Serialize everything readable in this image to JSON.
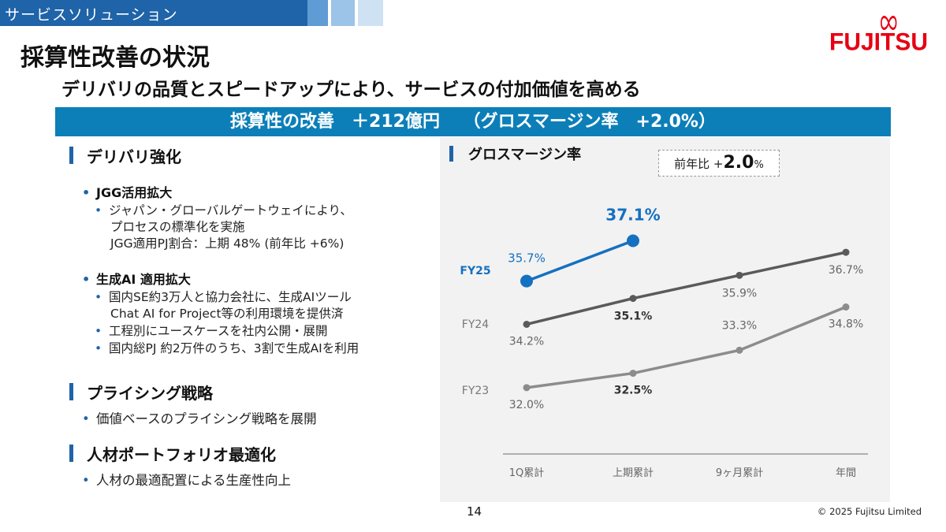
{
  "header": {
    "section_label": "サービスソリューション",
    "logo_text": "FUJITSU",
    "title": "採算性改善の状況",
    "subtitle": "デリバリの品質とスピードアップにより、サービスの付加価値を高める",
    "banner": "採算性の改善　＋212億円　 （グロスマージン率　+2.0%）"
  },
  "left": {
    "delivery": {
      "heading": "デリバリ強化",
      "items": [
        {
          "label": "JGG活用拡大",
          "sub": [
            {
              "lines": [
                "ジャパン・グローバルゲートウェイにより、",
                "プロセスの標準化を実施",
                "JGG適用PJ割合：上期 48% (前年比 +6%)"
              ]
            }
          ]
        },
        {
          "label": "生成AI 適用拡大",
          "sub": [
            {
              "lines": [
                "国内SE約3万人と協力会社に、生成AIツール",
                "Chat AI for Project等の利用環境を提供済"
              ]
            },
            {
              "lines": [
                "工程別にユースケースを社内公開・展開"
              ]
            },
            {
              "lines": [
                "国内総PJ 約2万件のうち、3割で生成AIを利用"
              ]
            }
          ]
        }
      ]
    },
    "pricing": {
      "heading": "プライシング戦略",
      "item": "価値ベースのプライシング戦略を展開"
    },
    "talent": {
      "heading": "人材ポートフォリオ最適化",
      "item": "人材の最適配置による生産性向上"
    }
  },
  "chart_box": {
    "title": "グロスマージン率",
    "yoy_prefix": "前年比 +",
    "yoy_value": "2.0",
    "yoy_unit": "%"
  },
  "chart_data": {
    "type": "line",
    "title": "グロスマージン率",
    "categories": [
      "1Q累計",
      "上期累計",
      "9ヶ月累計",
      "年間"
    ],
    "series": [
      {
        "name": "FY23",
        "values": [
          32.0,
          32.5,
          33.3,
          34.8
        ],
        "labels": [
          "32.0%",
          "32.5%",
          "33.3%",
          "34.8%"
        ],
        "bold": [
          false,
          true,
          false,
          false
        ],
        "color": "#8c8c8c"
      },
      {
        "name": "FY24",
        "values": [
          34.2,
          35.1,
          35.9,
          36.7
        ],
        "labels": [
          "34.2%",
          "35.1%",
          "35.9%",
          "36.7%"
        ],
        "bold": [
          false,
          true,
          false,
          false
        ],
        "color": "#5a5a5a"
      },
      {
        "name": "FY25",
        "values": [
          35.7,
          37.1,
          null,
          null
        ],
        "labels": [
          "35.7%",
          "37.1%",
          "",
          ""
        ],
        "bold": [
          false,
          true,
          false,
          false
        ],
        "color": "#1470c0"
      }
    ],
    "colors": {
      "fy23": "#8c8c8c",
      "fy24": "#5a5a5a",
      "fy25": "#1470c0",
      "axis": "#888888"
    }
  },
  "footer": {
    "page_number": "14",
    "copyright": "© 2025 Fujitsu Limited"
  }
}
